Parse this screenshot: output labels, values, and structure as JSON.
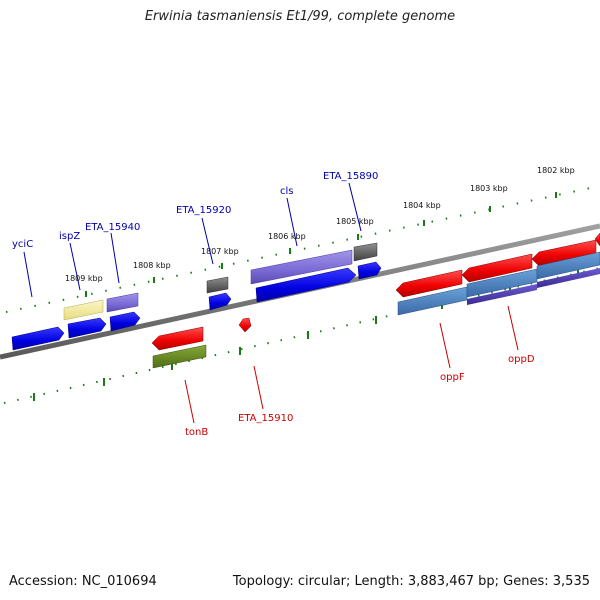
{
  "title": "Erwinia tasmaniensis Et1/99, complete genome",
  "footer": {
    "accession": "Accession: NC_010694",
    "topology": "Topology: circular; Length: 3,883,467 bp; Genes: 3,535"
  },
  "colors": {
    "backbone": "#808080",
    "ticks": "#1a7a1a",
    "label_forward": "#0000aa",
    "label_reverse": "#cc0000"
  },
  "kbp_labels": [
    "1809 kbp",
    "1808 kbp",
    "1807 kbp",
    "1806 kbp",
    "1805 kbp",
    "1804 kbp",
    "1803 kbp",
    "1802 kbp"
  ],
  "gene_labels_forward": [
    "yciC",
    "ispZ",
    "ETA_15940",
    "ETA_15920",
    "cls",
    "ETA_15890"
  ],
  "gene_labels_reverse": [
    "tonB",
    "ETA_15910",
    "oppF",
    "oppD"
  ]
}
